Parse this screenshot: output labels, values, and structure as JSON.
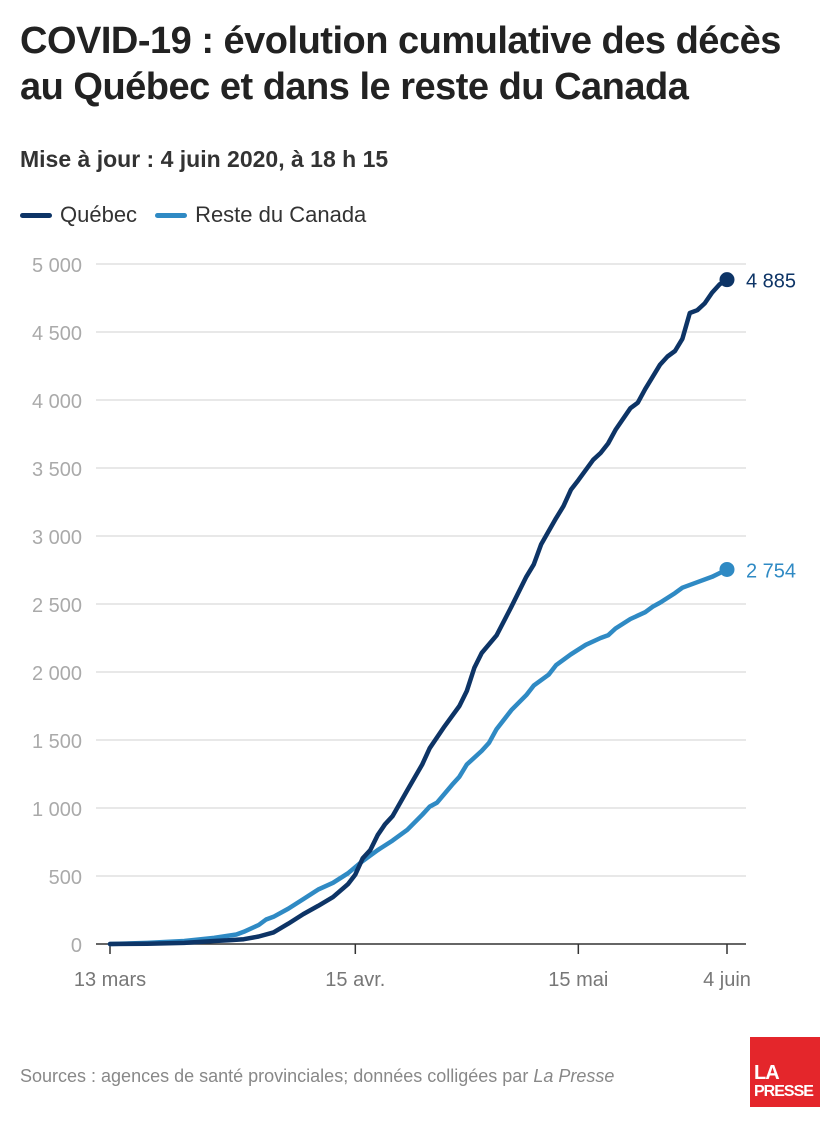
{
  "header": {
    "title": "COVID-19 : évolution cumulative des décès au Québec et dans le reste du Canada",
    "subtitle": "Mise à jour : 4 juin 2020, à 18 h 15"
  },
  "footer": {
    "source_prefix": "Sources : agences de santé provinciales; données colligées par ",
    "source_italic": "La Presse",
    "logo_line1": "LA",
    "logo_line2": "PRESSE"
  },
  "chart_data": {
    "type": "line",
    "x_unit": "days since 13 March 2020",
    "x_ticks": [
      {
        "x": 0,
        "label": "13 mars"
      },
      {
        "x": 33,
        "label": "15 avr."
      },
      {
        "x": 63,
        "label": "15 mai"
      },
      {
        "x": 83,
        "label": "4 juin"
      }
    ],
    "y_ticks": [
      0,
      500,
      1000,
      1500,
      2000,
      2500,
      3000,
      3500,
      4000,
      4500,
      5000
    ],
    "y_tick_labels": [
      "0",
      "500",
      "1 000",
      "1 500",
      "2 000",
      "2 500",
      "3 000",
      "3 500",
      "4 000",
      "4 500",
      "5 000"
    ],
    "xlim": [
      0,
      83
    ],
    "ylim": [
      0,
      5000
    ],
    "grid": true,
    "legend_position": "top-left",
    "series": [
      {
        "name": "Québec",
        "color": "#0d3466",
        "end_label": "4 885",
        "points": [
          [
            0,
            0
          ],
          [
            5,
            2
          ],
          [
            10,
            8
          ],
          [
            14,
            22
          ],
          [
            16,
            28
          ],
          [
            18,
            35
          ],
          [
            20,
            55
          ],
          [
            22,
            85
          ],
          [
            24,
            150
          ],
          [
            26,
            220
          ],
          [
            28,
            280
          ],
          [
            30,
            345
          ],
          [
            32,
            440
          ],
          [
            33,
            510
          ],
          [
            34,
            630
          ],
          [
            35,
            690
          ],
          [
            36,
            800
          ],
          [
            37,
            880
          ],
          [
            38,
            940
          ],
          [
            40,
            1130
          ],
          [
            42,
            1320
          ],
          [
            43,
            1440
          ],
          [
            45,
            1600
          ],
          [
            47,
            1750
          ],
          [
            48,
            1860
          ],
          [
            49,
            2030
          ],
          [
            50,
            2140
          ],
          [
            52,
            2270
          ],
          [
            54,
            2480
          ],
          [
            56,
            2700
          ],
          [
            57,
            2790
          ],
          [
            58,
            2940
          ],
          [
            60,
            3130
          ],
          [
            61,
            3220
          ],
          [
            62,
            3340
          ],
          [
            63,
            3410
          ],
          [
            65,
            3560
          ],
          [
            66,
            3610
          ],
          [
            67,
            3680
          ],
          [
            68,
            3780
          ],
          [
            70,
            3940
          ],
          [
            71,
            3980
          ],
          [
            72,
            4080
          ],
          [
            74,
            4260
          ],
          [
            75,
            4320
          ],
          [
            76,
            4360
          ],
          [
            77,
            4450
          ],
          [
            78,
            4640
          ],
          [
            79,
            4660
          ],
          [
            80,
            4710
          ],
          [
            81,
            4790
          ],
          [
            82,
            4850
          ],
          [
            83,
            4885
          ]
        ]
      },
      {
        "name": "Reste du Canada",
        "color": "#2f8ac4",
        "end_label": "2 754",
        "points": [
          [
            0,
            0
          ],
          [
            5,
            8
          ],
          [
            10,
            22
          ],
          [
            14,
            45
          ],
          [
            17,
            70
          ],
          [
            18,
            90
          ],
          [
            20,
            140
          ],
          [
            21,
            180
          ],
          [
            22,
            200
          ],
          [
            24,
            260
          ],
          [
            26,
            330
          ],
          [
            28,
            400
          ],
          [
            30,
            450
          ],
          [
            32,
            520
          ],
          [
            34,
            610
          ],
          [
            36,
            690
          ],
          [
            38,
            760
          ],
          [
            40,
            840
          ],
          [
            42,
            950
          ],
          [
            43,
            1010
          ],
          [
            44,
            1040
          ],
          [
            46,
            1170
          ],
          [
            47,
            1230
          ],
          [
            48,
            1320
          ],
          [
            50,
            1420
          ],
          [
            51,
            1480
          ],
          [
            52,
            1580
          ],
          [
            54,
            1720
          ],
          [
            56,
            1830
          ],
          [
            57,
            1900
          ],
          [
            59,
            1980
          ],
          [
            60,
            2050
          ],
          [
            62,
            2130
          ],
          [
            64,
            2200
          ],
          [
            66,
            2250
          ],
          [
            67,
            2270
          ],
          [
            68,
            2320
          ],
          [
            70,
            2390
          ],
          [
            72,
            2440
          ],
          [
            73,
            2480
          ],
          [
            74,
            2510
          ],
          [
            76,
            2580
          ],
          [
            77,
            2620
          ],
          [
            79,
            2660
          ],
          [
            81,
            2700
          ],
          [
            83,
            2754
          ]
        ]
      }
    ]
  }
}
